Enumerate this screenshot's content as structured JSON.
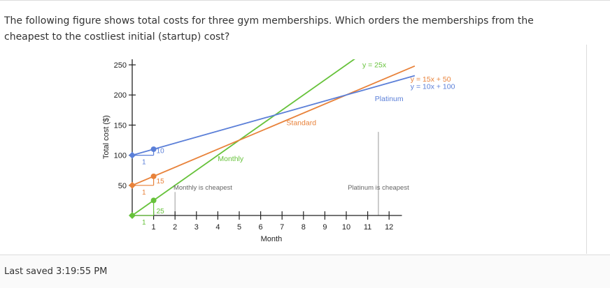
{
  "question": {
    "text": "The following figure shows total costs for three gym memberships. Which orders the memberships from the cheapest to the costliest initial (startup) cost?"
  },
  "chart_data": {
    "type": "line",
    "xlabel": "Month",
    "ylabel": "Total cost ($)",
    "xlim": [
      0,
      13
    ],
    "ylim": [
      0,
      260
    ],
    "x_ticks": [
      1,
      2,
      3,
      4,
      5,
      6,
      7,
      8,
      9,
      10,
      11,
      12
    ],
    "y_ticks": [
      50,
      100,
      150,
      200,
      250
    ],
    "series": [
      {
        "label": "y = 25x",
        "color": "#66c23a",
        "intercept": 0,
        "slope": 25,
        "x": [
          0,
          13.2
        ],
        "name_on_chart": "Monthly"
      },
      {
        "label": "y = 15x + 50",
        "color": "#e8823a",
        "intercept": 50,
        "slope": 15,
        "x": [
          0,
          13.2
        ],
        "name_on_chart": "Standard"
      },
      {
        "label": "y = 10x + 100",
        "color": "#5b7fd8",
        "intercept": 100,
        "slope": 10,
        "x": [
          0,
          13.2
        ],
        "name_on_chart": "Platinum"
      }
    ],
    "slope_triangles": [
      {
        "color": "#5b7fd8",
        "run_label": "1",
        "rise_label": "10",
        "y0": 100,
        "rise": 10
      },
      {
        "color": "#e8823a",
        "run_label": "1",
        "rise_label": "15",
        "y0": 50,
        "rise": 15
      },
      {
        "color": "#66c23a",
        "run_label": "1",
        "rise_label": "25",
        "y0": 0,
        "rise": 25
      }
    ],
    "annotations": [
      {
        "text": "Monthly is cheapest",
        "x": 3.3,
        "y": 23
      },
      {
        "text": "Platinum is cheapest",
        "x": 11.5,
        "y": 23
      }
    ],
    "reference_lines": [
      2,
      11.5
    ]
  },
  "status": {
    "saved": "Last saved 3:19:55 PM"
  }
}
